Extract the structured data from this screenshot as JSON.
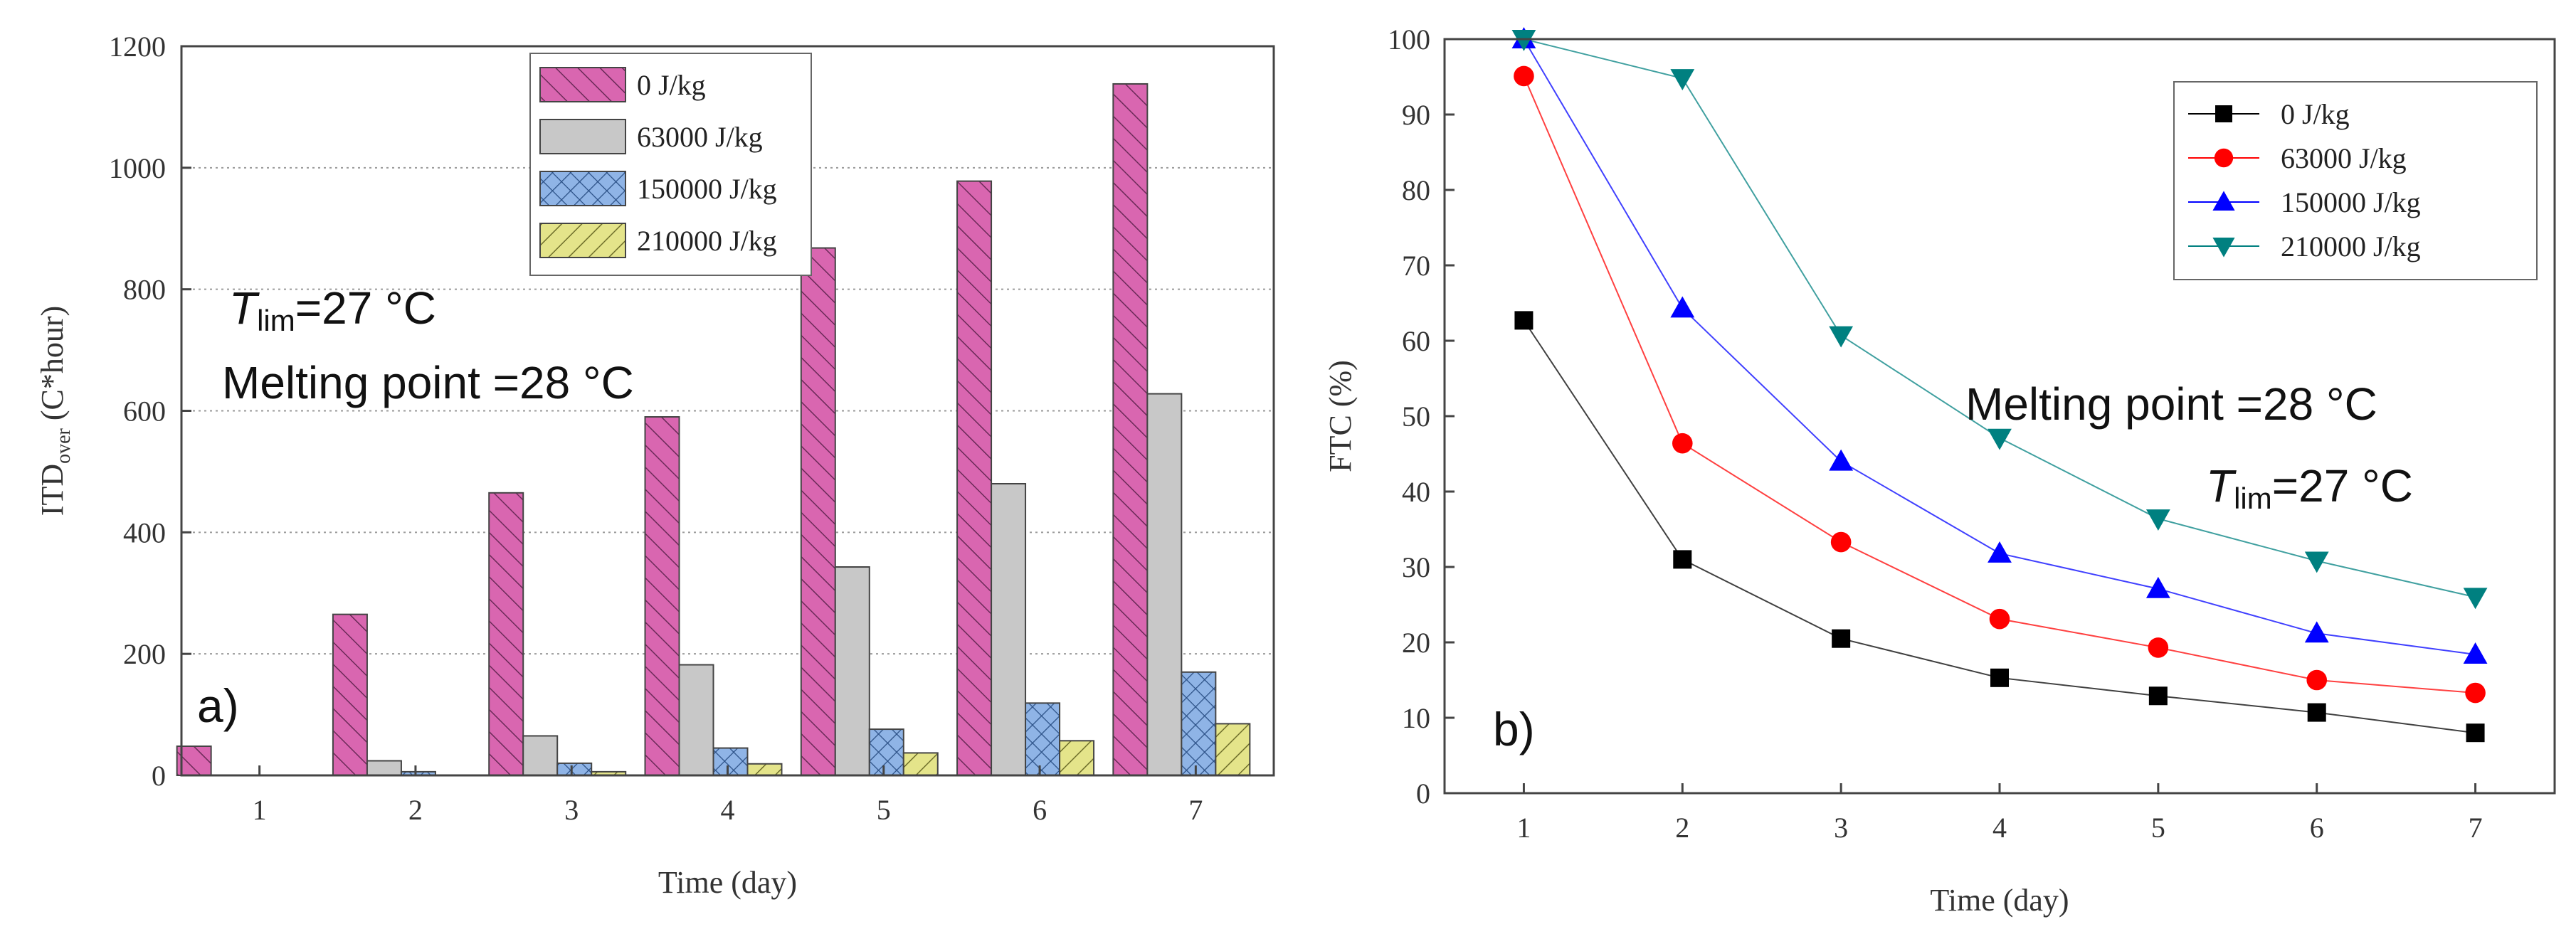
{
  "chart_data": [
    {
      "type": "bar",
      "panel_label": "a)",
      "xlabel": "Time (day)",
      "ylabel_main": "ITD",
      "ylabel_sub": "over",
      "ylabel_tail": " (C*hour)",
      "categories": [
        "1",
        "2",
        "3",
        "4",
        "5",
        "6",
        "7"
      ],
      "ylim": [
        0,
        1200
      ],
      "yticks": [
        0,
        200,
        400,
        600,
        800,
        1000,
        1200
      ],
      "grid": "horizontal-dotted",
      "legend_position": "top-right",
      "series": [
        {
          "name": "0 J/kg",
          "color": "#D966B0",
          "pattern": "diagonal-hatch",
          "values": [
            48,
            265,
            465,
            590,
            868,
            978,
            1138
          ]
        },
        {
          "name": "63000 J/kg",
          "color": "#C8C8C8",
          "pattern": "solid",
          "values": [
            0,
            24,
            65,
            182,
            343,
            480,
            628
          ]
        },
        {
          "name": "150000 J/kg",
          "color": "#8FB4E6",
          "pattern": "crosshatch",
          "values": [
            0,
            6,
            20,
            45,
            76,
            119,
            170
          ]
        },
        {
          "name": "210000 J/kg",
          "color": "#E4E48A",
          "pattern": "back-diagonal-hatch",
          "values": [
            0,
            0,
            6,
            19,
            37,
            57,
            85
          ]
        }
      ],
      "annotations": {
        "tlim_main": "T",
        "tlim_sub": "lim",
        "tlim_value": "=27 °C",
        "melting": "Melting point =28 °C"
      }
    },
    {
      "type": "line",
      "panel_label": "b)",
      "xlabel": "Time (day)",
      "ylabel": "FTC (%)",
      "x": [
        1,
        2,
        3,
        4,
        5,
        6,
        7
      ],
      "xlim": [
        0.5,
        7.5
      ],
      "ylim": [
        0,
        100
      ],
      "yticks": [
        0,
        10,
        20,
        30,
        40,
        50,
        60,
        70,
        80,
        90,
        100
      ],
      "legend_position": "top-right",
      "series": [
        {
          "name": "0 J/kg",
          "color": "#000000",
          "marker": "square",
          "values": [
            62.7,
            31.0,
            20.5,
            15.3,
            12.9,
            10.7,
            8.0
          ]
        },
        {
          "name": "63000 J/kg",
          "color": "#FF0000",
          "marker": "circle",
          "values": [
            95.1,
            46.4,
            33.3,
            23.1,
            19.3,
            15.0,
            13.3
          ]
        },
        {
          "name": "150000 J/kg",
          "color": "#0000FF",
          "marker": "triangle-up",
          "values": [
            100.0,
            64.3,
            44.0,
            31.8,
            27.1,
            21.2,
            18.4
          ]
        },
        {
          "name": "210000 J/kg",
          "color": "#008080",
          "marker": "triangle-down",
          "values": [
            100.0,
            94.8,
            60.7,
            47.1,
            36.4,
            30.8,
            26.0
          ]
        }
      ],
      "annotations": {
        "melting": "Melting point =28 °C",
        "tlim_main": "T",
        "tlim_sub": "lim",
        "tlim_value": "=27 °C"
      }
    }
  ]
}
